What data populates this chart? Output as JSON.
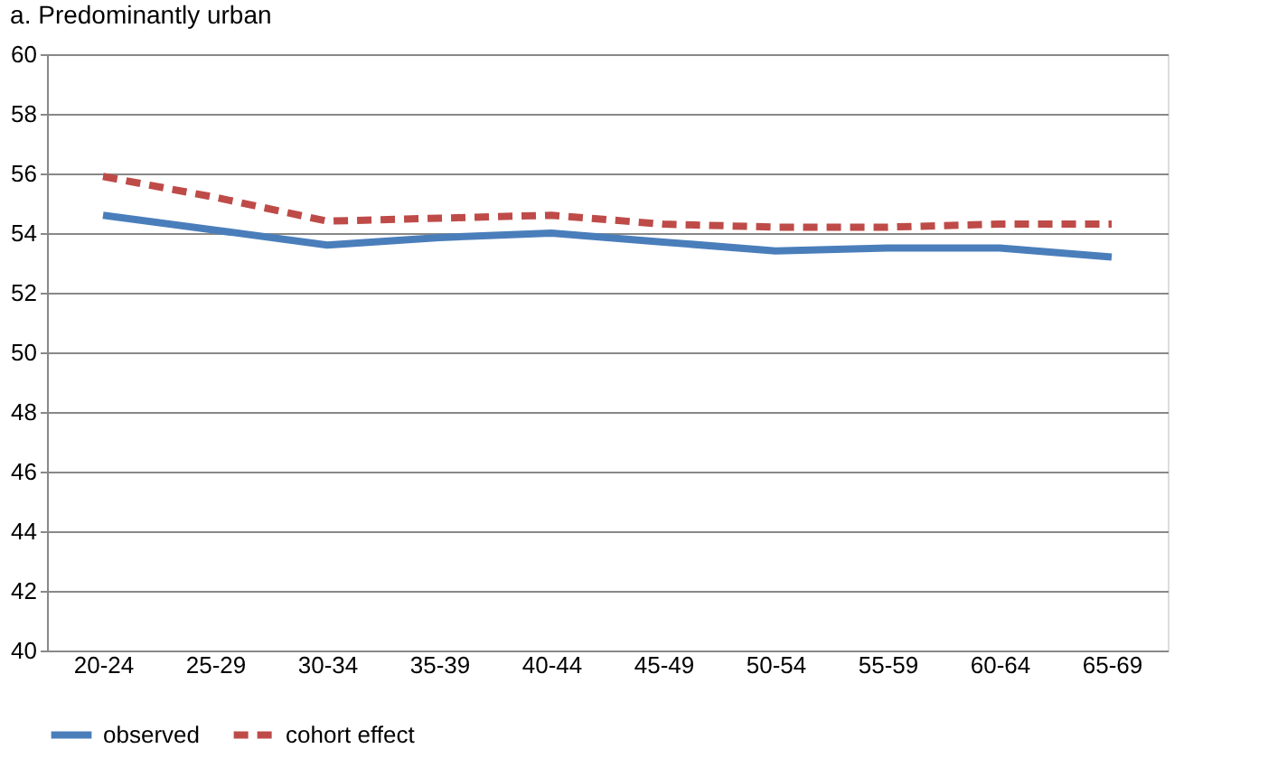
{
  "chart_data": {
    "type": "line",
    "title": "a. Predominantly urban",
    "categories": [
      "20-24",
      "25-29",
      "30-34",
      "35-39",
      "40-44",
      "45-49",
      "50-54",
      "55-59",
      "60-64",
      "65-69"
    ],
    "series": [
      {
        "name": "observed",
        "color": "#4a7ebb",
        "line_style": "solid",
        "values": [
          54.6,
          54.1,
          53.6,
          53.85,
          54.0,
          53.7,
          53.4,
          53.5,
          53.5,
          53.2
        ]
      },
      {
        "name": "cohort effect",
        "color": "#be4b48",
        "line_style": "dashed",
        "values": [
          55.9,
          55.2,
          54.4,
          54.5,
          54.6,
          54.3,
          54.2,
          54.2,
          54.3,
          54.3
        ]
      }
    ],
    "ylim": [
      40,
      60
    ],
    "yticks": [
      40,
      42,
      44,
      46,
      48,
      50,
      52,
      54,
      56,
      58,
      60
    ],
    "grid": "y",
    "legend": "bottom",
    "marker": "none"
  }
}
